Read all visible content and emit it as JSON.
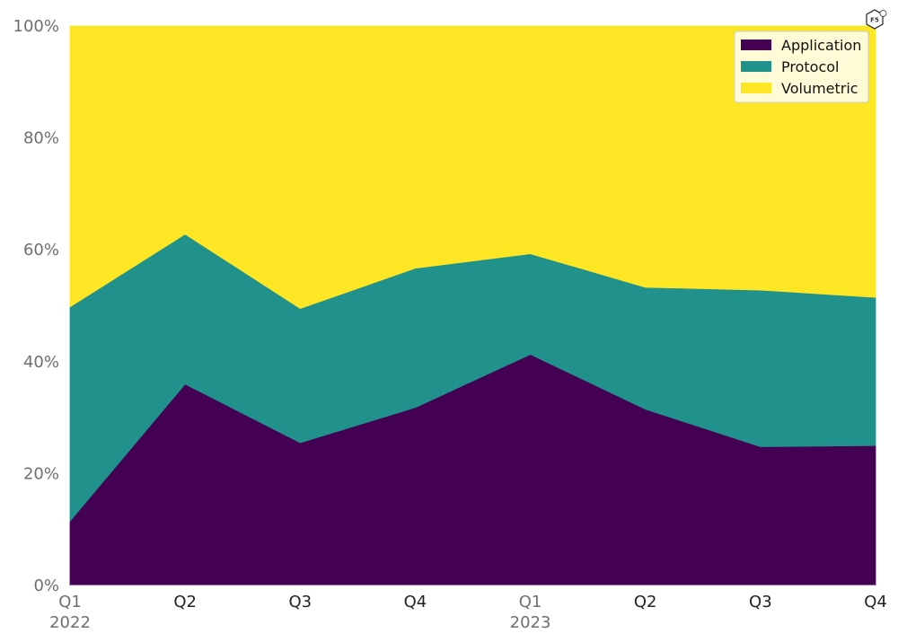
{
  "chart_data": {
    "type": "area",
    "stacked": true,
    "normalized": true,
    "categories": [
      "Q1",
      "Q2",
      "Q3",
      "Q4",
      "Q1",
      "Q2",
      "Q3",
      "Q4"
    ],
    "year_labels": [
      {
        "index": 0,
        "label": "2022"
      },
      {
        "index": 4,
        "label": "2023"
      }
    ],
    "series": [
      {
        "name": "Application",
        "color": "#440154",
        "values": [
          11.5,
          36.0,
          25.5,
          31.8,
          41.3,
          31.5,
          24.8,
          25.0
        ]
      },
      {
        "name": "Protocol",
        "color": "#21918c",
        "values": [
          38.3,
          26.8,
          24.0,
          24.9,
          18.0,
          21.8,
          28.0,
          26.5
        ]
      },
      {
        "name": "Volumetric",
        "color": "#fde725",
        "values": [
          50.2,
          37.2,
          50.5,
          43.3,
          40.7,
          46.7,
          47.2,
          48.5
        ]
      }
    ],
    "ylim": [
      0,
      100
    ],
    "yticks": [
      "0%",
      "20%",
      "40%",
      "60%",
      "80%",
      "100%"
    ],
    "grid": false,
    "legend_position": "top-right",
    "title": "",
    "xlabel": "",
    "ylabel": ""
  },
  "logo": {
    "text": "F5",
    "icon": "f5-logo-icon"
  }
}
